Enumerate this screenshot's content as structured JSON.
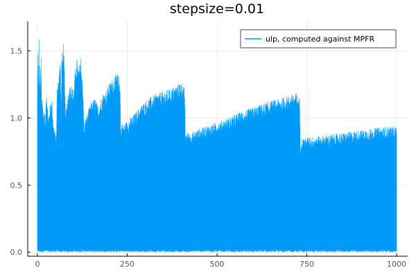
{
  "chart_data": {
    "type": "line",
    "title": "stepsize=0.01",
    "xlabel": "",
    "ylabel": "",
    "xlim": [
      0,
      1000
    ],
    "ylim": [
      -0.03,
      1.72
    ],
    "x_ticks": [
      0,
      250,
      500,
      750,
      1000
    ],
    "x_tick_labels": [
      "0",
      "250",
      "500",
      "750",
      "1000"
    ],
    "y_ticks": [
      0.0,
      0.5,
      1.0,
      1.5
    ],
    "y_tick_labels": [
      "0.0",
      "0.5",
      "1.0",
      "1.5"
    ],
    "grid": true,
    "legend_position": "top-right",
    "series": [
      {
        "name": "ulp, computed against MPFR",
        "color": "#009af9",
        "x_range": [
          0,
          1000
        ],
        "step": 0.01,
        "floor": 0.0,
        "upper_envelope": {
          "x": [
            0,
            2,
            4,
            6,
            8,
            10,
            12,
            14,
            16,
            18,
            20,
            22,
            25,
            30,
            35,
            40,
            45,
            50,
            52,
            55,
            60,
            64,
            66,
            68,
            70,
            72,
            74,
            76,
            78,
            80,
            82,
            85,
            90,
            95,
            100,
            105,
            110,
            115,
            120,
            125,
            128,
            130,
            132,
            134,
            140,
            150,
            160,
            170,
            180,
            190,
            200,
            210,
            220,
            225,
            230,
            232,
            234,
            240,
            250,
            270,
            290,
            310,
            330,
            350,
            370,
            390,
            400,
            405,
            410,
            412,
            415,
            430,
            450,
            470,
            500,
            530,
            560,
            590,
            620,
            650,
            680,
            700,
            720,
            725,
            730,
            732,
            735,
            760,
            800,
            850,
            900,
            950,
            1000
          ],
          "y": [
            1.53,
            1.2,
            1.67,
            1.3,
            1.25,
            1.5,
            1.1,
            1.2,
            1.0,
            1.1,
            1.05,
            0.95,
            1.25,
            1.0,
            1.1,
            1.15,
            0.95,
            0.9,
            0.82,
            1.25,
            1.32,
            1.48,
            1.05,
            1.55,
            1.42,
            1.57,
            1.5,
            1.3,
            1.0,
            1.12,
            1.05,
            1.2,
            1.25,
            1.25,
            1.2,
            1.35,
            1.45,
            1.35,
            1.47,
            1.3,
            1.12,
            0.9,
            1.0,
            1.0,
            1.05,
            1.12,
            1.15,
            1.08,
            1.18,
            1.2,
            1.26,
            1.3,
            1.33,
            1.32,
            1.3,
            0.9,
            0.97,
            0.95,
            0.98,
            1.03,
            1.1,
            1.15,
            1.18,
            1.2,
            1.22,
            1.25,
            1.28,
            1.25,
            1.22,
            0.87,
            0.9,
            0.89,
            0.92,
            0.94,
            0.97,
            1.0,
            1.04,
            1.07,
            1.1,
            1.13,
            1.15,
            1.17,
            1.19,
            1.17,
            1.15,
            0.8,
            0.85,
            0.86,
            0.87,
            0.89,
            0.91,
            0.93,
            0.94
          ]
        }
      }
    ]
  }
}
